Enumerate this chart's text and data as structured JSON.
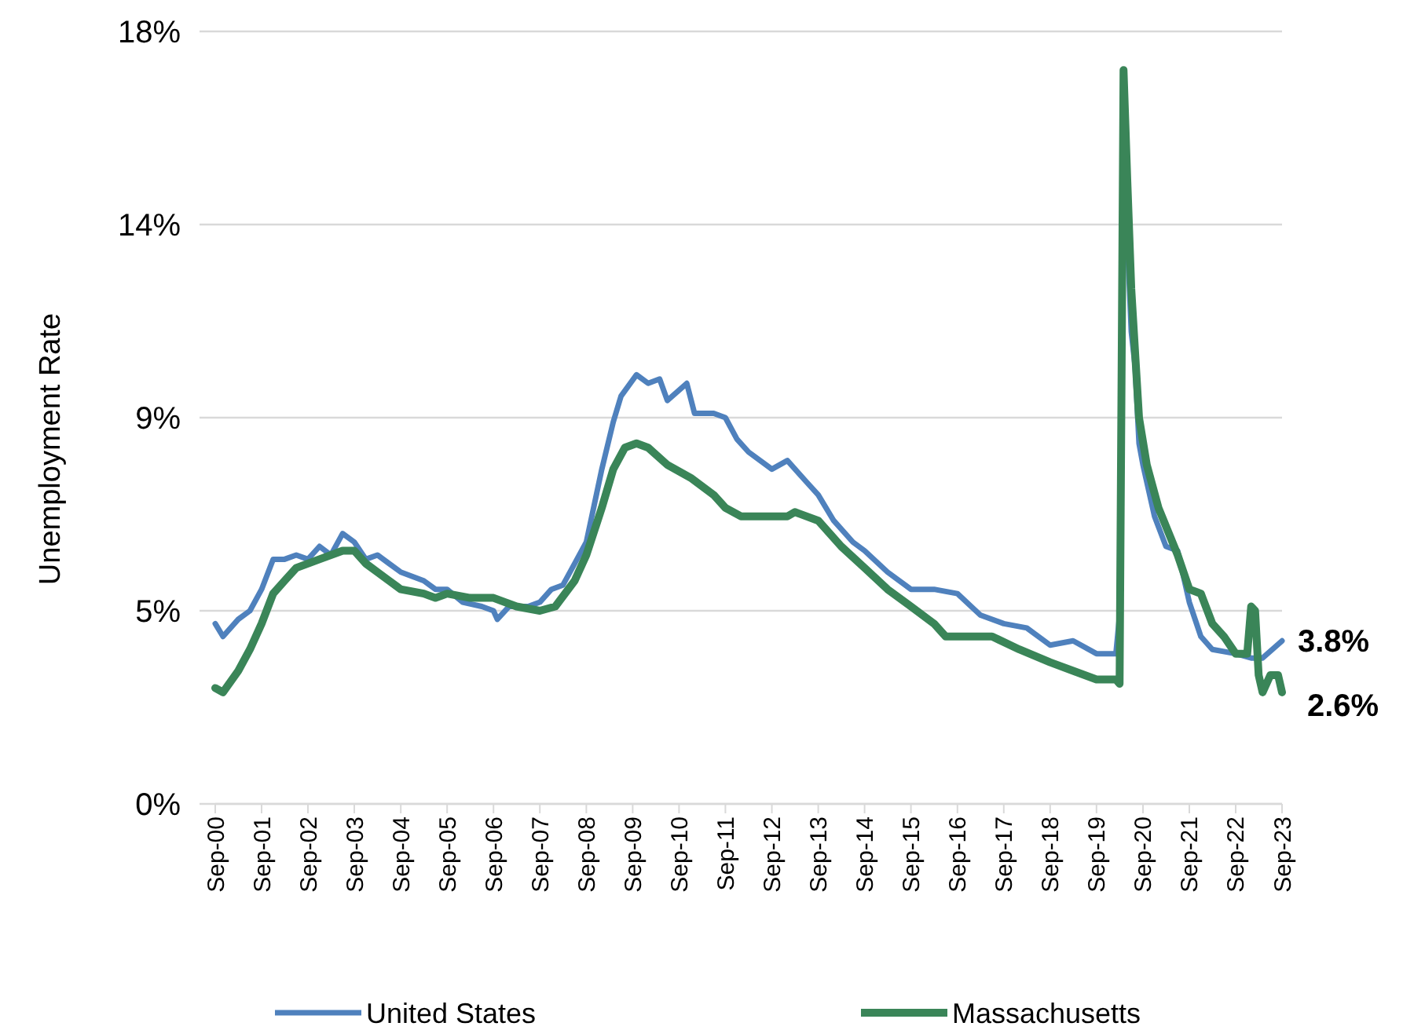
{
  "chart_data": {
    "type": "line",
    "ylabel": "Unemployment Rate",
    "xlim": [
      "2000-09",
      "2023-09"
    ],
    "xticks": [
      {
        "value": "2000-09",
        "label": "Sep-00"
      },
      {
        "value": "2001-09",
        "label": "Sep-01"
      },
      {
        "value": "2002-09",
        "label": "Sep-02"
      },
      {
        "value": "2003-09",
        "label": "Sep-03"
      },
      {
        "value": "2004-09",
        "label": "Sep-04"
      },
      {
        "value": "2005-09",
        "label": "Sep-05"
      },
      {
        "value": "2006-09",
        "label": "Sep-06"
      },
      {
        "value": "2007-09",
        "label": "Sep-07"
      },
      {
        "value": "2008-09",
        "label": "Sep-08"
      },
      {
        "value": "2009-09",
        "label": "Sep-09"
      },
      {
        "value": "2010-09",
        "label": "Sep-10"
      },
      {
        "value": "2011-09",
        "label": "Sep-11"
      },
      {
        "value": "2012-09",
        "label": "Sep-12"
      },
      {
        "value": "2013-09",
        "label": "Sep-13"
      },
      {
        "value": "2014-09",
        "label": "Sep-14"
      },
      {
        "value": "2015-09",
        "label": "Sep-15"
      },
      {
        "value": "2016-09",
        "label": "Sep-16"
      },
      {
        "value": "2017-09",
        "label": "Sep-17"
      },
      {
        "value": "2018-09",
        "label": "Sep-18"
      },
      {
        "value": "2019-09",
        "label": "Sep-19"
      },
      {
        "value": "2020-09",
        "label": "Sep-20"
      },
      {
        "value": "2021-09",
        "label": "Sep-21"
      },
      {
        "value": "2022-09",
        "label": "Sep-22"
      },
      {
        "value": "2023-09",
        "label": "Sep-23"
      }
    ],
    "ylim": [
      0,
      18
    ],
    "yticks": [
      {
        "value": 0,
        "label": "0%"
      },
      {
        "value": 4.5,
        "label": "5%"
      },
      {
        "value": 9,
        "label": "9%"
      },
      {
        "value": 13.5,
        "label": "14%"
      },
      {
        "value": 18,
        "label": "18%"
      }
    ],
    "grid": "y",
    "legend": "bottom",
    "series": [
      {
        "name": "United States",
        "color": "#4f81bd",
        "x": [
          "2000-09",
          "2000-11",
          "2001-03",
          "2001-06",
          "2001-09",
          "2001-12",
          "2002-03",
          "2002-06",
          "2002-09",
          "2002-12",
          "2003-03",
          "2003-06",
          "2003-09",
          "2003-12",
          "2004-03",
          "2004-06",
          "2004-09",
          "2005-03",
          "2005-06",
          "2005-09",
          "2006-01",
          "2006-06",
          "2006-09",
          "2006-10",
          "2007-01",
          "2007-06",
          "2007-09",
          "2007-12",
          "2008-03",
          "2008-06",
          "2008-09",
          "2009-01",
          "2009-04",
          "2009-06",
          "2009-10",
          "2010-01",
          "2010-04",
          "2010-06",
          "2010-11",
          "2011-01",
          "2011-06",
          "2011-09",
          "2011-12",
          "2012-03",
          "2012-09",
          "2013-01",
          "2013-06",
          "2013-09",
          "2014-01",
          "2014-06",
          "2014-09",
          "2015-03",
          "2015-09",
          "2016-03",
          "2016-09",
          "2017-03",
          "2017-09",
          "2018-03",
          "2018-09",
          "2019-03",
          "2019-09",
          "2020-02",
          "2020-03",
          "2020-04",
          "2020-05",
          "2020-06",
          "2020-07",
          "2020-08",
          "2020-09",
          "2020-12",
          "2021-03",
          "2021-06",
          "2021-09",
          "2021-12",
          "2022-03",
          "2022-09",
          "2023-01",
          "2023-04",
          "2023-09"
        ],
        "values": [
          4.2,
          3.9,
          4.3,
          4.5,
          5.0,
          5.7,
          5.7,
          5.8,
          5.7,
          6.0,
          5.8,
          6.3,
          6.1,
          5.7,
          5.8,
          5.6,
          5.4,
          5.2,
          5.0,
          5.0,
          4.7,
          4.6,
          4.5,
          4.3,
          4.6,
          4.6,
          4.7,
          5.0,
          5.1,
          5.6,
          6.1,
          7.8,
          8.9,
          9.5,
          10.0,
          9.8,
          9.9,
          9.4,
          9.8,
          9.1,
          9.1,
          9.0,
          8.5,
          8.2,
          7.8,
          8.0,
          7.5,
          7.2,
          6.6,
          6.1,
          5.9,
          5.4,
          5.0,
          5.0,
          4.9,
          4.4,
          4.2,
          4.1,
          3.7,
          3.8,
          3.5,
          3.5,
          4.4,
          17.1,
          13.2,
          11.0,
          10.2,
          8.4,
          7.9,
          6.7,
          6.0,
          5.9,
          4.7,
          3.9,
          3.6,
          3.5,
          3.4,
          3.4,
          3.8
        ]
      },
      {
        "name": "Massachusetts",
        "color": "#3a8558",
        "x": [
          "2000-09",
          "2000-11",
          "2001-03",
          "2001-06",
          "2001-09",
          "2001-12",
          "2002-03",
          "2002-06",
          "2002-12",
          "2003-06",
          "2003-09",
          "2003-12",
          "2004-03",
          "2004-06",
          "2004-09",
          "2005-03",
          "2005-06",
          "2005-09",
          "2006-03",
          "2006-09",
          "2007-03",
          "2007-09",
          "2008-01",
          "2008-06",
          "2008-09",
          "2009-01",
          "2009-04",
          "2009-07",
          "2009-10",
          "2010-01",
          "2010-06",
          "2010-12",
          "2011-06",
          "2011-09",
          "2012-01",
          "2013-01",
          "2013-03",
          "2013-09",
          "2014-03",
          "2014-09",
          "2015-03",
          "2015-09",
          "2016-03",
          "2016-06",
          "2016-09",
          "2017-06",
          "2018-01",
          "2018-09",
          "2019-03",
          "2019-09",
          "2020-02",
          "2020-03",
          "2020-04",
          "2020-05",
          "2020-06",
          "2020-08",
          "2020-10",
          "2021-01",
          "2021-06",
          "2021-09",
          "2021-12",
          "2022-03",
          "2022-06",
          "2022-09",
          "2022-12",
          "2023-01",
          "2023-02",
          "2023-03",
          "2023-04",
          "2023-06",
          "2023-08",
          "2023-09"
        ],
        "values": [
          2.7,
          2.6,
          3.1,
          3.6,
          4.2,
          4.9,
          5.2,
          5.5,
          5.7,
          5.9,
          5.9,
          5.6,
          5.4,
          5.2,
          5.0,
          4.9,
          4.8,
          4.9,
          4.8,
          4.8,
          4.6,
          4.5,
          4.6,
          5.2,
          5.8,
          6.9,
          7.8,
          8.3,
          8.4,
          8.3,
          7.9,
          7.6,
          7.2,
          6.9,
          6.7,
          6.7,
          6.8,
          6.6,
          6.0,
          5.5,
          5.0,
          4.6,
          4.2,
          3.9,
          3.9,
          3.9,
          3.6,
          3.3,
          3.1,
          2.9,
          2.9,
          2.8,
          17.1,
          14.5,
          12.0,
          9.0,
          7.9,
          6.9,
          5.8,
          5.0,
          4.9,
          4.2,
          3.9,
          3.5,
          3.5,
          4.6,
          4.5,
          3.0,
          2.6,
          3.0,
          3.0,
          2.6
        ]
      }
    ],
    "annotations": [
      {
        "text": "3.8%",
        "x": "2023-09",
        "y": 3.8
      },
      {
        "text": "2.6%",
        "x": "2023-09",
        "y": 2.6
      }
    ]
  }
}
